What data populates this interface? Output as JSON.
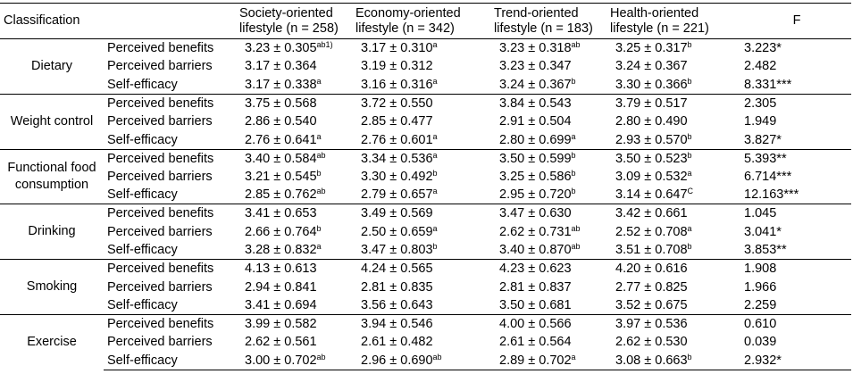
{
  "header": {
    "classification": "Classification",
    "col1": "Society-oriented lifestyle (n = 258)",
    "col2": "Economy-oriented lifestyle (n = 342)",
    "col3": "Trend-oriented lifestyle (n = 183)",
    "col4": "Health-oriented lifestyle (n = 221)",
    "f": "F"
  },
  "groups": [
    {
      "name": "Dietary",
      "rows": [
        {
          "label": "Perceived benefits",
          "vals": [
            [
              "3.23 ± 0.305",
              "ab1)"
            ],
            [
              "3.17 ± 0.310",
              "a"
            ],
            [
              "3.23 ± 0.318",
              "ab"
            ],
            [
              "3.25 ± 0.317",
              "b"
            ]
          ],
          "f": "3.223*"
        },
        {
          "label": "Perceived barriers",
          "vals": [
            [
              "3.17 ± 0.364",
              ""
            ],
            [
              "3.19 ± 0.312",
              ""
            ],
            [
              "3.23 ± 0.347",
              ""
            ],
            [
              "3.24 ± 0.367",
              ""
            ]
          ],
          "f": "2.482"
        },
        {
          "label": "Self-efficacy",
          "vals": [
            [
              "3.17 ± 0.338",
              "a"
            ],
            [
              "3.16 ± 0.316",
              "a"
            ],
            [
              "3.24 ± 0.367",
              "b"
            ],
            [
              "3.30 ± 0.366",
              "b"
            ]
          ],
          "f": "8.331***"
        }
      ]
    },
    {
      "name": "Weight control",
      "rows": [
        {
          "label": "Perceived benefits",
          "vals": [
            [
              "3.75 ± 0.568",
              ""
            ],
            [
              "3.72 ± 0.550",
              ""
            ],
            [
              "3.84 ± 0.543",
              ""
            ],
            [
              "3.79 ± 0.517",
              ""
            ]
          ],
          "f": "2.305"
        },
        {
          "label": "Perceived barriers",
          "vals": [
            [
              "2.86 ± 0.540",
              ""
            ],
            [
              "2.85 ± 0.477",
              ""
            ],
            [
              "2.91 ± 0.504",
              ""
            ],
            [
              "2.80 ± 0.490",
              ""
            ]
          ],
          "f": "1.949"
        },
        {
          "label": "Self-efficacy",
          "vals": [
            [
              "2.76 ± 0.641",
              "a"
            ],
            [
              "2.76 ± 0.601",
              "a"
            ],
            [
              "2.80 ± 0.699",
              "a"
            ],
            [
              "2.93 ± 0.570",
              "b"
            ]
          ],
          "f": "3.827*"
        }
      ]
    },
    {
      "name": "Functional food consumption",
      "rows": [
        {
          "label": "Perceived benefits",
          "vals": [
            [
              "3.40 ± 0.584",
              "ab"
            ],
            [
              "3.34 ± 0.536",
              "a"
            ],
            [
              "3.50 ± 0.599",
              "b"
            ],
            [
              "3.50 ± 0.523",
              "b"
            ]
          ],
          "f": "5.393**"
        },
        {
          "label": "Perceived barriers",
          "vals": [
            [
              "3.21 ± 0.545",
              "b"
            ],
            [
              "3.30 ± 0.492",
              "b"
            ],
            [
              "3.25 ± 0.586",
              "b"
            ],
            [
              "3.09 ± 0.532",
              "a"
            ]
          ],
          "f": "6.714***"
        },
        {
          "label": "Self-efficacy",
          "vals": [
            [
              "2.85 ± 0.762",
              "ab"
            ],
            [
              "2.79 ± 0.657",
              "a"
            ],
            [
              "2.95 ± 0.720",
              "b"
            ],
            [
              "3.14 ± 0.647",
              "C"
            ]
          ],
          "f": "12.163***"
        }
      ]
    },
    {
      "name": "Drinking",
      "rows": [
        {
          "label": "Perceived benefits",
          "vals": [
            [
              "3.41 ± 0.653",
              ""
            ],
            [
              "3.49 ± 0.569",
              ""
            ],
            [
              "3.47 ± 0.630",
              ""
            ],
            [
              "3.42 ± 0.661",
              ""
            ]
          ],
          "f": "1.045"
        },
        {
          "label": "Perceived barriers",
          "vals": [
            [
              "2.66 ± 0.764",
              "b"
            ],
            [
              "2.50 ± 0.659",
              "a"
            ],
            [
              "2.62 ± 0.731",
              "ab"
            ],
            [
              "2.52 ± 0.708",
              "a"
            ]
          ],
          "f": "3.041*"
        },
        {
          "label": "Self-efficacy",
          "vals": [
            [
              "3.28 ± 0.832",
              "a"
            ],
            [
              "3.47 ± 0.803",
              "b"
            ],
            [
              "3.40 ± 0.870",
              "ab"
            ],
            [
              "3.51 ± 0.708",
              "b"
            ]
          ],
          "f": "3.853**"
        }
      ]
    },
    {
      "name": "Smoking",
      "rows": [
        {
          "label": "Perceived benefits",
          "vals": [
            [
              "4.13 ± 0.613",
              ""
            ],
            [
              "4.24 ± 0.565",
              ""
            ],
            [
              "4.23 ± 0.623",
              ""
            ],
            [
              "4.20 ± 0.616",
              ""
            ]
          ],
          "f": "1.908"
        },
        {
          "label": "Perceived barriers",
          "vals": [
            [
              "2.94 ± 0.841",
              ""
            ],
            [
              "2.81 ± 0.835",
              ""
            ],
            [
              "2.81 ± 0.837",
              ""
            ],
            [
              "2.77 ± 0.825",
              ""
            ]
          ],
          "f": "1.966"
        },
        {
          "label": "Self-efficacy",
          "vals": [
            [
              "3.41 ± 0.694",
              ""
            ],
            [
              "3.56 ± 0.643",
              ""
            ],
            [
              "3.50 ± 0.681",
              ""
            ],
            [
              "3.52 ± 0.675",
              ""
            ]
          ],
          "f": "2.259"
        }
      ]
    },
    {
      "name": "Exercise",
      "rows": [
        {
          "label": "Perceived benefits",
          "vals": [
            [
              "3.99 ± 0.582",
              ""
            ],
            [
              "3.94 ± 0.546",
              ""
            ],
            [
              "4.00 ± 0.566",
              ""
            ],
            [
              "3.97 ± 0.536",
              ""
            ]
          ],
          "f": "0.610"
        },
        {
          "label": "Perceived barriers",
          "vals": [
            [
              "2.62 ± 0.561",
              ""
            ],
            [
              "2.61 ± 0.482",
              ""
            ],
            [
              "2.61 ± 0.564",
              ""
            ],
            [
              "2.62 ± 0.530",
              ""
            ]
          ],
          "f": "0.039"
        },
        {
          "label": "Self-efficacy",
          "vals": [
            [
              "3.00 ± 0.702",
              "ab"
            ],
            [
              "2.96 ± 0.690",
              "ab"
            ],
            [
              "2.89 ± 0.702",
              "a"
            ],
            [
              "3.08 ± 0.663",
              "b"
            ]
          ],
          "f": "2.932*"
        }
      ]
    }
  ]
}
